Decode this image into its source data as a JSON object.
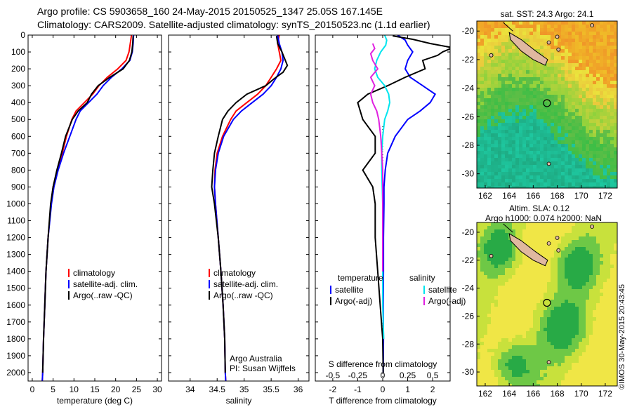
{
  "header": {
    "line1": "Argo profile: CS 5903658_160 24-May-2015 20150525_1347 25.05S 167.145E",
    "line2": "Climatology: CARS2009. Satellite-adjusted climatology: synTS_20150523.nc (1.1d earlier)"
  },
  "colors": {
    "clim": "#ff0000",
    "sat": "#0000ff",
    "argo": "#000000",
    "cyan": "#00e5ee",
    "magenta": "#e020e0"
  },
  "chart_data": [
    {
      "type": "line",
      "name": "temperature",
      "xlabel": "temperature (deg C)",
      "ylabel": "",
      "xlim": [
        -1,
        31
      ],
      "ylim": [
        0,
        2050
      ],
      "xticks": [
        "0",
        "5",
        "10",
        "15",
        "20",
        "25",
        "30"
      ],
      "xtick_values": [
        0,
        5,
        10,
        15,
        20,
        25,
        30
      ],
      "yticks": [
        "0",
        "100",
        "200",
        "300",
        "400",
        "500",
        "600",
        "700",
        "800",
        "900",
        "1000",
        "1100",
        "1200",
        "1300",
        "1400",
        "1500",
        "1600",
        "1700",
        "1800",
        "1900",
        "2000"
      ],
      "ytick_values": [
        0,
        100,
        200,
        300,
        400,
        500,
        600,
        700,
        800,
        900,
        1000,
        1100,
        1200,
        1300,
        1400,
        1500,
        1600,
        1700,
        1800,
        1900,
        2000
      ],
      "legend": [
        "climatology",
        "satellite-adj. clim.",
        "Argo(..raw -QC)"
      ],
      "series": [
        {
          "name": "climatology",
          "color": "clim",
          "x": [
            23.8,
            23.5,
            23.2,
            22.5,
            20.5,
            18.0,
            16.0,
            14.5,
            12.5,
            10.5,
            9.5,
            8.2,
            7.2,
            6.0,
            5.0,
            4.5,
            3.8,
            3.3,
            3.0,
            2.7,
            2.5,
            2.4
          ],
          "y": [
            0,
            50,
            100,
            150,
            200,
            250,
            300,
            350,
            400,
            450,
            500,
            600,
            700,
            800,
            900,
            1000,
            1200,
            1400,
            1600,
            1800,
            2000,
            2050
          ]
        },
        {
          "name": "satellite-adj. clim.",
          "color": "sat",
          "x": [
            24.3,
            24.2,
            24.0,
            23.4,
            21.5,
            19.0,
            17.0,
            15.5,
            13.5,
            11.5,
            10.5,
            9.0,
            7.5,
            6.2,
            5.2,
            4.6,
            3.8,
            3.3,
            3.0,
            2.7,
            2.5,
            2.4
          ],
          "y": [
            0,
            50,
            100,
            150,
            200,
            250,
            300,
            350,
            400,
            450,
            500,
            600,
            700,
            800,
            900,
            1000,
            1200,
            1400,
            1600,
            1800,
            2000,
            2050
          ]
        },
        {
          "name": "Argo(..raw -QC)",
          "color": "argo",
          "x": [
            24.2,
            24.1,
            23.9,
            23.3,
            21.8,
            18.6,
            15.8,
            14.2,
            13.2,
            11.0,
            9.6,
            8.0,
            7.0,
            5.9,
            5.0,
            4.4,
            3.8,
            3.3,
            3.0,
            2.7,
            2.5
          ],
          "y": [
            5,
            50,
            100,
            150,
            200,
            250,
            300,
            350,
            400,
            450,
            500,
            600,
            700,
            800,
            900,
            1000,
            1200,
            1400,
            1600,
            1800,
            2000
          ]
        }
      ],
      "annotations": []
    },
    {
      "type": "line",
      "name": "salinity",
      "xlabel": "salinity",
      "ylabel": "",
      "xlim": [
        33.6,
        36.2
      ],
      "ylim": [
        0,
        2050
      ],
      "xticks": [
        "34",
        "34.5",
        "35",
        "35.5",
        "36"
      ],
      "xtick_values": [
        34,
        34.5,
        35,
        35.5,
        36
      ],
      "legend": [
        "climatology",
        "satellite-adj. clim.",
        "Argo(..raw -QC)"
      ],
      "series": [
        {
          "name": "climatology",
          "color": "clim",
          "x": [
            35.65,
            35.62,
            35.65,
            35.68,
            35.6,
            35.5,
            35.4,
            35.25,
            35.05,
            34.85,
            34.75,
            34.6,
            34.5,
            34.46,
            34.45,
            34.47,
            34.52,
            34.57,
            34.61,
            34.64,
            34.65,
            34.66
          ],
          "y": [
            0,
            50,
            100,
            150,
            200,
            250,
            300,
            350,
            400,
            450,
            500,
            600,
            700,
            800,
            900,
            1000,
            1200,
            1400,
            1600,
            1800,
            2000,
            2050
          ]
        },
        {
          "name": "satellite-adj. clim.",
          "color": "sat",
          "x": [
            35.62,
            35.65,
            35.7,
            35.72,
            35.68,
            35.6,
            35.5,
            35.35,
            35.15,
            34.95,
            34.8,
            34.62,
            34.52,
            34.47,
            34.45,
            34.47,
            34.52,
            34.57,
            34.61,
            34.64,
            34.65,
            34.66
          ],
          "y": [
            0,
            50,
            100,
            150,
            200,
            250,
            300,
            350,
            400,
            450,
            500,
            600,
            700,
            800,
            900,
            1000,
            1200,
            1400,
            1600,
            1800,
            2000,
            2050
          ]
        },
        {
          "name": "Argo(..raw -QC)",
          "color": "argo",
          "x": [
            35.6,
            35.62,
            35.7,
            35.8,
            35.72,
            35.55,
            35.4,
            35.05,
            34.85,
            34.7,
            34.6,
            34.52,
            34.45,
            34.42,
            34.4,
            34.45,
            34.52,
            34.57,
            34.61,
            34.64,
            34.65
          ],
          "y": [
            5,
            50,
            100,
            180,
            220,
            260,
            300,
            350,
            400,
            450,
            500,
            600,
            700,
            800,
            900,
            1000,
            1200,
            1400,
            1600,
            1800,
            2000
          ]
        }
      ],
      "annotations": [
        "Argo Australia",
        "PI: Susan Wijffels"
      ]
    },
    {
      "type": "line",
      "name": "differences",
      "xlabel": "T difference from climatology",
      "xlabel_top": "S difference from climatology",
      "xlim": [
        -2.7,
        2.7
      ],
      "ylim": [
        0,
        2050
      ],
      "xticks": [
        "-2",
        "-1",
        "0",
        "1",
        "2"
      ],
      "xtick_values": [
        -2,
        -1,
        0,
        1,
        2
      ],
      "sticks": [
        "-0.5",
        "-0.25",
        "0",
        "0.25",
        "0.5"
      ],
      "stick_values": [
        -0.5,
        -0.25,
        0,
        0.25,
        0.5
      ],
      "s_scale": 4,
      "legend_left_title": "temperature",
      "legend_right_title": "salinity",
      "legend_left": [
        "satellite",
        "Argo(-adj)"
      ],
      "legend_right": [
        "satellite",
        "Argo(-adj)"
      ],
      "series": [
        {
          "name": "T satellite",
          "color": "sat",
          "x": [
            0.6,
            0.9,
            1.0,
            1.2,
            1.0,
            0.9,
            1.1,
            1.6,
            2.1,
            1.9,
            1.5,
            1.0,
            0.5,
            0.2,
            0.1,
            0.05,
            0.05,
            0.03,
            0.03,
            0.02,
            0.03,
            0.02
          ],
          "y": [
            0,
            30,
            60,
            100,
            150,
            200,
            250,
            300,
            350,
            400,
            450,
            500,
            600,
            700,
            800,
            900,
            1000,
            1200,
            1400,
            1600,
            1800,
            2000
          ]
        },
        {
          "name": "T Argo(-adj)",
          "color": "argo",
          "x": [
            0.4,
            1.2,
            1.9,
            2.8,
            2.4,
            2.2,
            1.6,
            1.7,
            0.9,
            0.2,
            -0.6,
            -1.0,
            -0.8,
            -0.3,
            -0.3,
            -0.8,
            -0.4,
            -0.3,
            -0.3,
            -0.2,
            -0.1,
            0.0,
            0.02
          ],
          "y": [
            5,
            25,
            50,
            75,
            100,
            120,
            150,
            200,
            250,
            300,
            350,
            400,
            500,
            600,
            700,
            800,
            900,
            1000,
            1200,
            1400,
            1600,
            1800,
            2000
          ]
        },
        {
          "name": "S satellite",
          "color": "cyan",
          "x": [
            0.02,
            0.04,
            0.03,
            -0.02,
            -0.06,
            -0.08,
            -0.05,
            0.02,
            0.06,
            0.07,
            0.05,
            0.02,
            0.0,
            -0.01,
            -0.01,
            -0.005,
            0.0,
            0.0,
            0.0,
            0.0,
            0.01
          ],
          "y": [
            0,
            30,
            60,
            100,
            150,
            200,
            250,
            300,
            350,
            400,
            450,
            500,
            600,
            700,
            800,
            900,
            1000,
            1200,
            1400,
            1600,
            1800
          ]
        },
        {
          "name": "S Argo(-adj)",
          "color": "magenta",
          "x": [
            -0.1,
            -0.08,
            -0.12,
            -0.1,
            -0.05,
            -0.12,
            -0.08,
            -0.12,
            -0.1,
            -0.06,
            -0.04,
            -0.02,
            -0.01,
            0.0,
            0.0,
            0.0,
            0.0,
            0.0
          ],
          "y": [
            50,
            80,
            110,
            150,
            200,
            250,
            300,
            350,
            400,
            450,
            500,
            600,
            700,
            800,
            900,
            1000,
            1200,
            1400
          ]
        }
      ]
    },
    {
      "type": "heatmap",
      "name": "sst_map",
      "title": "sat. SST: 24.3 Argo: 24.1",
      "xticks": [
        "162",
        "164",
        "166",
        "168",
        "170",
        "172"
      ],
      "xtick_values": [
        162,
        164,
        166,
        168,
        170,
        172
      ],
      "yticks": [
        "-20",
        "-22",
        "-24",
        "-26",
        "-28",
        "-30"
      ],
      "ytick_values": [
        -20,
        -22,
        -24,
        -26,
        -28,
        -30
      ],
      "xlim": [
        161.3,
        173
      ],
      "ylim": [
        -31,
        -19.3
      ],
      "marker": {
        "lon": 167.145,
        "lat": -25.05
      }
    },
    {
      "type": "heatmap",
      "name": "sla_map",
      "title_line1": "Altim. SLA: 0.12",
      "title_line2": "Argo h1000: 0.074 h2000: NaN",
      "xticks": [
        "162",
        "164",
        "166",
        "168",
        "170",
        "172"
      ],
      "xtick_values": [
        162,
        164,
        166,
        168,
        170,
        172
      ],
      "yticks": [
        "-20",
        "-22",
        "-24",
        "-26",
        "-28",
        "-30"
      ],
      "ytick_values": [
        -20,
        -22,
        -24,
        -26,
        -28,
        -30
      ],
      "xlim": [
        161.3,
        173
      ],
      "ylim": [
        -31,
        -19.3
      ],
      "marker": {
        "lon": 167.145,
        "lat": -25.05
      }
    }
  ],
  "footer_stamp": "©IMOS 30-May-2015 20:43:45"
}
